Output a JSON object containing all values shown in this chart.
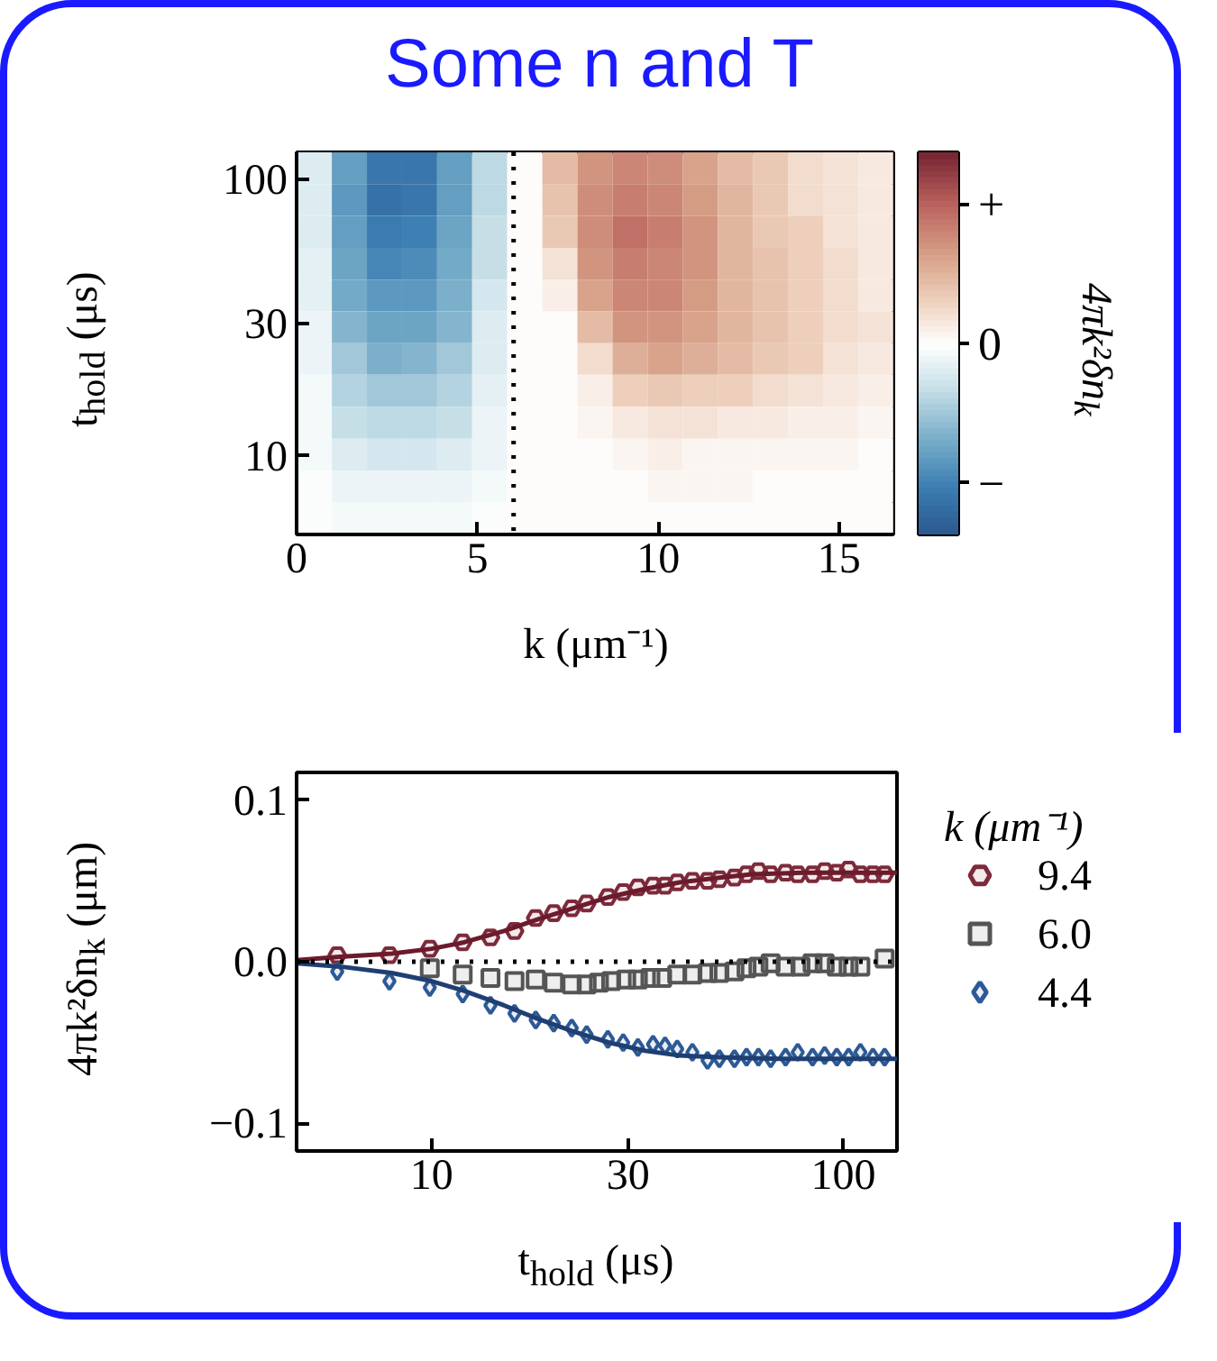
{
  "chart_data": [
    {
      "type": "heatmap",
      "title": "Some n and T",
      "xlabel": "k (μm⁻¹)",
      "ylabel": "t$_{hold}$ (μs)",
      "clabel": "4πk²δn$_{k}$",
      "x": [
        0.49,
        1.46,
        2.43,
        3.4,
        4.37,
        5.34,
        6.31,
        7.28,
        8.25,
        9.22,
        10.19,
        11.16,
        12.13,
        13.1,
        14.07,
        15.04,
        16.01
      ],
      "y": [
        109.5,
        84.0,
        64.5,
        49.5,
        38.0,
        29.1,
        22.4,
        17.2,
        13.2,
        10.1,
        7.74,
        5.94
      ],
      "xlim": [
        0,
        16.5
      ],
      "xticks": [
        0,
        5,
        10,
        15
      ],
      "ylim": [
        5.2,
        125
      ],
      "yticks": [
        10,
        30,
        100
      ],
      "log": "y",
      "grid": false,
      "clim": [
        -1.37,
        1.37
      ],
      "cticks": [
        {
          "value": 1,
          "label": "+"
        },
        {
          "value": 0,
          "label": "0"
        },
        {
          "value": -1,
          "label": "−"
        }
      ],
      "ref_lines": [
        {
          "axis": "x",
          "value": 6.0,
          "line_style": "dotted",
          "color": "#000000"
        }
      ],
      "cells": [
        [
          -0.2,
          -0.8,
          -1.1,
          -1.1,
          -0.8,
          -0.35,
          0,
          0.45,
          0.7,
          0.8,
          0.75,
          0.6,
          0.45,
          0.35,
          0.25,
          0.2,
          0.15
        ],
        [
          -0.2,
          -0.85,
          -1.15,
          -1.1,
          -0.8,
          -0.35,
          0,
          0.4,
          0.75,
          0.85,
          0.8,
          0.65,
          0.5,
          0.35,
          0.25,
          0.2,
          0.15
        ],
        [
          -0.2,
          -0.8,
          -1.05,
          -1.0,
          -0.75,
          -0.3,
          0,
          0.35,
          0.75,
          0.9,
          0.85,
          0.7,
          0.5,
          0.35,
          0.3,
          0.2,
          0.15
        ],
        [
          -0.15,
          -0.75,
          -0.95,
          -0.9,
          -0.7,
          -0.3,
          0,
          0.2,
          0.7,
          0.85,
          0.8,
          0.7,
          0.5,
          0.4,
          0.3,
          0.25,
          0.15
        ],
        [
          -0.15,
          -0.7,
          -0.85,
          -0.85,
          -0.65,
          -0.25,
          0,
          0.1,
          0.6,
          0.8,
          0.8,
          0.65,
          0.5,
          0.4,
          0.3,
          0.25,
          0.15
        ],
        [
          -0.1,
          -0.6,
          -0.75,
          -0.75,
          -0.6,
          -0.2,
          0,
          0,
          0.45,
          0.7,
          0.7,
          0.6,
          0.5,
          0.4,
          0.3,
          0.25,
          0.2
        ],
        [
          -0.1,
          -0.5,
          -0.65,
          -0.6,
          -0.5,
          -0.2,
          0,
          0,
          0.25,
          0.55,
          0.6,
          0.55,
          0.45,
          0.35,
          0.3,
          0.2,
          0.15
        ],
        [
          -0.05,
          -0.4,
          -0.5,
          -0.5,
          -0.4,
          -0.15,
          0,
          0,
          0.1,
          0.3,
          0.35,
          0.3,
          0.3,
          0.25,
          0.2,
          0.15,
          0.1
        ],
        [
          -0.05,
          -0.3,
          -0.35,
          -0.35,
          -0.3,
          -0.1,
          0,
          0,
          0.05,
          0.15,
          0.2,
          0.2,
          0.15,
          0.15,
          0.1,
          0.1,
          0.05
        ],
        [
          -0.05,
          -0.2,
          -0.25,
          -0.25,
          -0.2,
          -0.1,
          0,
          0,
          0,
          0.05,
          0.1,
          0.08,
          0.08,
          0.05,
          0.05,
          0.05,
          0.02
        ],
        [
          -0.03,
          -0.1,
          -0.12,
          -0.12,
          -0.1,
          -0.05,
          0,
          0,
          0,
          0.03,
          0.05,
          0.05,
          0.05,
          0.03,
          0.03,
          0.03,
          0
        ],
        [
          -0.02,
          -0.06,
          -0.08,
          -0.08,
          -0.06,
          -0.03,
          0,
          0,
          0,
          0,
          0.02,
          0.02,
          0.02,
          0.02,
          0.02,
          0.02,
          0
        ]
      ]
    },
    {
      "type": "scatter",
      "xlabel": "t$_{hold}$ (μs)",
      "ylabel": "4πk²δn$_{k}$ (μm)",
      "legend_title": "k (μm⁻¹)",
      "legend": "right",
      "grid": false,
      "log": "x",
      "xlim": [
        4.7,
        135
      ],
      "xticks": [
        10,
        30,
        100
      ],
      "ylim": [
        -0.117,
        0.117
      ],
      "yticks": [
        {
          "value": -0.1,
          "label": "−0.1"
        },
        {
          "value": 0,
          "label": "0.0"
        },
        0.1
      ],
      "ref_lines": [
        {
          "axis": "y",
          "value": 0,
          "line_style": "dotted",
          "color": "#000000"
        }
      ],
      "series": [
        {
          "name": "9.4",
          "color": "#7d2a3a",
          "x": [
            5.9,
            7.9,
            9.9,
            11.9,
            13.9,
            15.9,
            17.9,
            19.8,
            21.9,
            23.8,
            26.8,
            29.2,
            31.7,
            34.5,
            36.9,
            39.5,
            43,
            46.8,
            50,
            54.4,
            58.2,
            62.2,
            66.6,
            72.4,
            77.5,
            84.2,
            90.1,
            96.4,
            103,
            110,
            118,
            126
          ],
          "values": [
            0.004,
            0.004,
            0.008,
            0.012,
            0.015,
            0.019,
            0.027,
            0.03,
            0.033,
            0.036,
            0.04,
            0.043,
            0.046,
            0.047,
            0.047,
            0.049,
            0.05,
            0.05,
            0.051,
            0.052,
            0.054,
            0.056,
            0.054,
            0.055,
            0.054,
            0.054,
            0.056,
            0.055,
            0.057,
            0.054,
            0.054,
            0.054
          ]
        },
        {
          "name": "6.0",
          "color": "#555555",
          "marker": "square",
          "x": [
            9.9,
            11.9,
            13.9,
            15.9,
            17.9,
            19.8,
            21.9,
            23.8,
            25.5,
            27.3,
            29.7,
            31.7,
            34,
            36.3,
            39.5,
            43,
            46.8,
            50,
            54.4,
            58.2,
            62.2,
            66.6,
            72.4,
            78.7,
            84.2,
            90.1,
            96.4,
            103,
            110,
            126
          ],
          "values": [
            -0.004,
            -0.008,
            -0.01,
            -0.012,
            -0.011,
            -0.013,
            -0.014,
            -0.014,
            -0.013,
            -0.012,
            -0.011,
            -0.011,
            -0.01,
            -0.01,
            -0.008,
            -0.008,
            -0.007,
            -0.007,
            -0.006,
            -0.004,
            -0.003,
            -0.001,
            -0.003,
            -0.003,
            -0.001,
            -0.001,
            -0.003,
            -0.003,
            -0.003,
            0.002
          ]
        },
        {
          "name": "4.4",
          "color": "#2d5a96",
          "marker": "diamond",
          "x": [
            5.9,
            7.9,
            9.9,
            11.9,
            13.9,
            15.9,
            17.9,
            19.8,
            21.9,
            23.8,
            26.8,
            29.2,
            31.7,
            34.5,
            36.9,
            39.5,
            43,
            46.8,
            50,
            54.4,
            58.2,
            62.2,
            66.6,
            72.4,
            77.5,
            84.2,
            90.1,
            96.4,
            103,
            110,
            118,
            126
          ],
          "values": [
            -0.006,
            -0.012,
            -0.016,
            -0.02,
            -0.027,
            -0.032,
            -0.036,
            -0.038,
            -0.041,
            -0.045,
            -0.048,
            -0.05,
            -0.053,
            -0.051,
            -0.052,
            -0.054,
            -0.056,
            -0.061,
            -0.06,
            -0.06,
            -0.059,
            -0.059,
            -0.06,
            -0.059,
            -0.056,
            -0.059,
            -0.058,
            -0.059,
            -0.059,
            -0.056,
            -0.059,
            -0.059
          ]
        },
        {
          "type": "line",
          "color": "#6b1b2b",
          "x": [
            4.7,
            6,
            8,
            10,
            12,
            15,
            18,
            22,
            27,
            33,
            40,
            50,
            60,
            80,
            135
          ],
          "values": [
            0.001,
            0.003,
            0.005,
            0.008,
            0.012,
            0.019,
            0.026,
            0.033,
            0.04,
            0.045,
            0.049,
            0.052,
            0.054,
            0.055,
            0.055
          ]
        },
        {
          "type": "line",
          "color": "#1f3f73",
          "x": [
            4.7,
            6,
            8,
            10,
            12,
            15,
            18,
            22,
            27,
            33,
            40,
            50,
            70,
            135
          ],
          "values": [
            -0.001,
            -0.003,
            -0.007,
            -0.012,
            -0.018,
            -0.027,
            -0.035,
            -0.043,
            -0.05,
            -0.055,
            -0.058,
            -0.059,
            -0.06,
            -0.06
          ]
        }
      ]
    }
  ]
}
